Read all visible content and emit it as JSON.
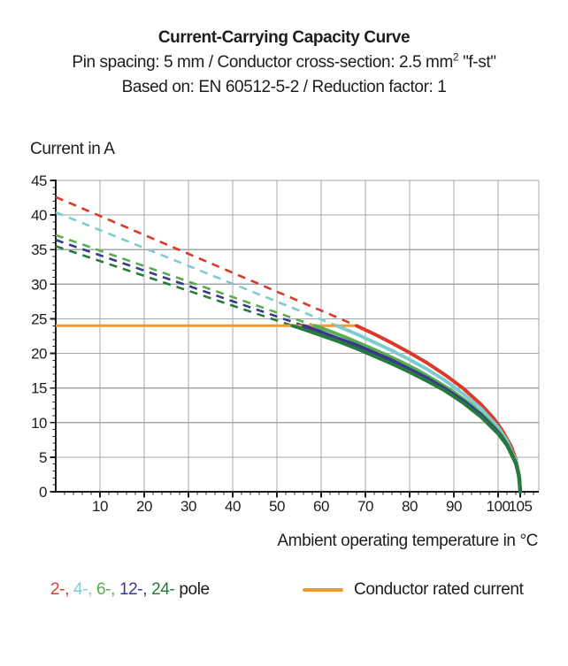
{
  "header": {
    "title": "Current-Carrying Capacity Curve",
    "subtitle1_prefix": "Pin spacing: 5 mm / Conductor cross-section: 2.5 mm",
    "subtitle1_sup": "2",
    "subtitle1_suffix": " \"f-st\"",
    "subtitle2": "Based on: EN 60512-5-2 / Reduction factor: 1"
  },
  "chart_data": {
    "type": "line",
    "title": "Current-Carrying Capacity Curve",
    "xlabel": "Ambient operating temperature in °C",
    "ylabel": "Current in A",
    "xlim": [
      0,
      109
    ],
    "ylim": [
      0,
      45
    ],
    "x_ticks": [
      10,
      20,
      30,
      40,
      50,
      60,
      70,
      80,
      90,
      100,
      105
    ],
    "y_ticks": [
      0,
      5,
      10,
      15,
      20,
      25,
      30,
      35,
      40,
      45
    ],
    "grid": true,
    "colors": {
      "grid": "#a7a7a7",
      "axis": "#1d1d1b",
      "text": "#1d1d1b"
    },
    "rated_line": {
      "label": "Conductor rated current",
      "value_a": 24,
      "color": "#f09a31",
      "x_start": 0,
      "x_end": 68
    },
    "series": [
      {
        "name": "2-pole",
        "color": "#dc3a28",
        "current_at_0c": 42.6,
        "rated_intersection_c": 68,
        "dashed_points": [
          [
            0,
            42.6
          ],
          [
            68,
            24
          ]
        ],
        "solid_points": [
          [
            68,
            24
          ],
          [
            72,
            22.8
          ],
          [
            76,
            21.5
          ],
          [
            80,
            20.1
          ],
          [
            84,
            18.6
          ],
          [
            88,
            16.9
          ],
          [
            92,
            15.0
          ],
          [
            96,
            12.7
          ],
          [
            99,
            10.6
          ],
          [
            101,
            8.8
          ],
          [
            103,
            6.5
          ],
          [
            104,
            4.7
          ],
          [
            104.8,
            2.3
          ],
          [
            105,
            0
          ]
        ]
      },
      {
        "name": "4-pole",
        "color": "#7fcbd2",
        "current_at_0c": 40.4,
        "rated_intersection_c": 63.5,
        "dashed_points": [
          [
            0,
            40.4
          ],
          [
            63.5,
            24
          ]
        ],
        "solid_points": [
          [
            63.5,
            24
          ],
          [
            68,
            22.8
          ],
          [
            72,
            21.6
          ],
          [
            76,
            20.4
          ],
          [
            80,
            19.1
          ],
          [
            84,
            17.7
          ],
          [
            88,
            16.1
          ],
          [
            92,
            14.2
          ],
          [
            96,
            12.1
          ],
          [
            100,
            9.3
          ],
          [
            102,
            7.4
          ],
          [
            104,
            4.5
          ],
          [
            104.8,
            2.2
          ],
          [
            105,
            0
          ]
        ]
      },
      {
        "name": "6-pole",
        "color": "#57ad4f",
        "current_at_0c": 37.1,
        "rated_intersection_c": 58.5,
        "dashed_points": [
          [
            0,
            37.1
          ],
          [
            58.5,
            24
          ]
        ],
        "solid_points": [
          [
            58.5,
            24
          ],
          [
            62,
            23.2
          ],
          [
            66,
            22.2
          ],
          [
            70,
            21.1
          ],
          [
            74,
            20.0
          ],
          [
            78,
            18.8
          ],
          [
            82,
            17.5
          ],
          [
            86,
            16.0
          ],
          [
            90,
            14.4
          ],
          [
            94,
            12.5
          ],
          [
            98,
            10.2
          ],
          [
            101,
            8.0
          ],
          [
            103,
            5.8
          ],
          [
            104.5,
            3.1
          ],
          [
            105,
            0
          ]
        ]
      },
      {
        "name": "12-pole",
        "color": "#39388e",
        "current_at_0c": 36.4,
        "rated_intersection_c": 56,
        "dashed_points": [
          [
            0,
            36.4
          ],
          [
            56,
            24
          ]
        ],
        "solid_points": [
          [
            56,
            24
          ],
          [
            60,
            23.1
          ],
          [
            64,
            22.1
          ],
          [
            68,
            21.2
          ],
          [
            72,
            20.1
          ],
          [
            76,
            19.0
          ],
          [
            80,
            17.7
          ],
          [
            84,
            16.4
          ],
          [
            88,
            14.9
          ],
          [
            92,
            13.2
          ],
          [
            96,
            11.2
          ],
          [
            100,
            8.6
          ],
          [
            102,
            6.8
          ],
          [
            104,
            4.2
          ],
          [
            104.8,
            2.0
          ],
          [
            105,
            0
          ]
        ]
      },
      {
        "name": "24-pole",
        "color": "#277a3e",
        "current_at_0c": 35.5,
        "rated_intersection_c": 53.5,
        "dashed_points": [
          [
            0,
            35.5
          ],
          [
            53.5,
            24
          ]
        ],
        "solid_points": [
          [
            53.5,
            24
          ],
          [
            56,
            23.5
          ],
          [
            60,
            22.6
          ],
          [
            64,
            21.7
          ],
          [
            68,
            20.7
          ],
          [
            72,
            19.6
          ],
          [
            76,
            18.5
          ],
          [
            80,
            17.3
          ],
          [
            84,
            16.0
          ],
          [
            88,
            14.6
          ],
          [
            92,
            12.9
          ],
          [
            96,
            10.9
          ],
          [
            100,
            8.4
          ],
          [
            102,
            6.7
          ],
          [
            104,
            4.1
          ],
          [
            104.8,
            2.0
          ],
          [
            105,
            0
          ]
        ]
      }
    ]
  },
  "legend": {
    "pole_items": [
      {
        "label": "2-,",
        "color": "#dc3a28"
      },
      {
        "label": "4-,",
        "color": "#7fcbd2"
      },
      {
        "label": "6-,",
        "color": "#57ad4f"
      },
      {
        "label": "12-,",
        "color": "#39388e"
      },
      {
        "label": "24-",
        "color": "#277a3e"
      }
    ],
    "pole_suffix": "pole",
    "rated_label": "Conductor rated current",
    "rated_color": "#f09a31"
  }
}
